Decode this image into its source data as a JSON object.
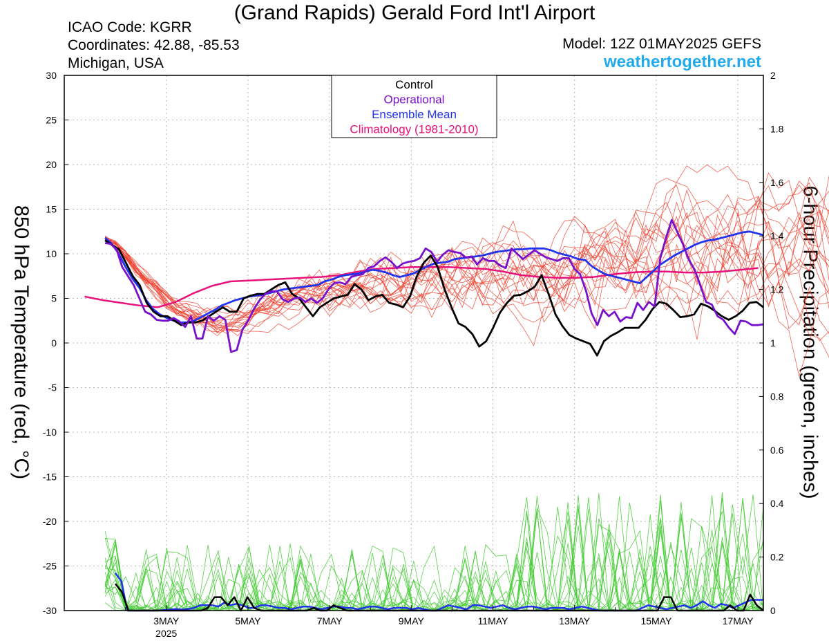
{
  "header": {
    "title": "(Grand Rapids) Gerald Ford Int'l Airport",
    "icao": "ICAO Code: KGRR",
    "coordinates": "Coordinates: 42.88, -85.53",
    "region": "Michigan, USA",
    "model": "Model: 12Z 01MAY2025 GEFS",
    "site": "weathertogether.net"
  },
  "colors": {
    "members_temp": "#ee4433",
    "members_precip": "#44cc33",
    "control": "#000000",
    "operational": "#7711cc",
    "ensemble_mean": "#2233ee",
    "climatology": "#e8127a"
  },
  "chart_data": {
    "type": "line",
    "xlabel": "",
    "ylabel": "850 hPa Temperature (red, °C)",
    "y2label": "6-hour Precipitation (green, inches)",
    "xlim": [
      0.5,
      17.625
    ],
    "ylim": [
      -30,
      30
    ],
    "y2lim": [
      0,
      2
    ],
    "grid": true,
    "legend_position": "top-center",
    "legend": [
      {
        "label": "Control",
        "color": "#000000"
      },
      {
        "label": "Operational",
        "color": "#7711cc"
      },
      {
        "label": "Ensemble Mean",
        "color": "#2233ee"
      },
      {
        "label": "Climatology (1981-2010)",
        "color": "#e8127a"
      }
    ],
    "y_ticks": [
      30,
      25,
      20,
      15,
      10,
      5,
      0,
      -5,
      -10,
      -15,
      -20,
      -25,
      -30
    ],
    "y2_ticks": [
      "2",
      "1.8",
      "1.6",
      "1.4",
      "1.2",
      "1",
      "0.8",
      "0.6",
      "0.4",
      "0.2",
      "0"
    ],
    "x_ticks": [
      {
        "day": 3,
        "label": "3MAY",
        "sublabel": "2025"
      },
      {
        "day": 5,
        "label": "5MAY"
      },
      {
        "day": 7,
        "label": "7MAY"
      },
      {
        "day": 9,
        "label": "9MAY"
      },
      {
        "day": 11,
        "label": "11MAY"
      },
      {
        "day": 13,
        "label": "13MAY"
      },
      {
        "day": 15,
        "label": "15MAY"
      },
      {
        "day": 17,
        "label": "17MAY"
      }
    ],
    "x_start_day": 1.5,
    "x_step_days": 0.25,
    "series": [
      {
        "name": "Control",
        "kind": "temp",
        "color": "#000000",
        "values": [
          11.5,
          11,
          10.5,
          9,
          7.5,
          6.5,
          4.5,
          3.5,
          3,
          3,
          2.5,
          2,
          2.3,
          2.3,
          2.5,
          3,
          3.5,
          4,
          3.5,
          3.5,
          5,
          5.3,
          5.5,
          5.5,
          6,
          6.5,
          6.8,
          5.5,
          5,
          4,
          3,
          4,
          4.5,
          5,
          5.2,
          5.4,
          6.6,
          6,
          4.8,
          5.2,
          5.4,
          4.5,
          4.3,
          4,
          5.2,
          7.5,
          9,
          9.8,
          8.5,
          6,
          4,
          2.2,
          1.8,
          1,
          -0.4,
          0.2,
          1.7,
          3.4,
          4.5,
          5.3,
          5.4,
          5.8,
          6.3,
          7.6,
          5.5,
          3.2,
          1.9,
          0.9,
          0.5,
          0.2,
          -0.1,
          -1.4,
          0.2,
          0.8,
          1.2,
          1.7,
          1.7,
          1.7,
          2.6,
          3.8,
          4.6,
          4.4,
          3.7,
          2.9,
          3,
          3.2,
          4.4,
          4.1,
          3.6,
          3,
          2.6,
          3,
          3.6,
          4.5,
          4.6,
          4
        ]
      },
      {
        "name": "Operational",
        "kind": "temp",
        "color": "#7711cc",
        "values": [
          11.2,
          11.1,
          10.5,
          8.5,
          7.5,
          6.5,
          5,
          3.5,
          3.2,
          2.6,
          2.5,
          2.5,
          2.8,
          2.4,
          1.8,
          3,
          0.5,
          0.5,
          3,
          2.5,
          3,
          2.6,
          -1,
          -0.8,
          1.5,
          2.5,
          3.8,
          4.8,
          5.5,
          5.8,
          5.8,
          4.9,
          4.6,
          5,
          5.1,
          4.6,
          5,
          4.5,
          5,
          6,
          6.7,
          6.8,
          6.6,
          7.4,
          7.6,
          7.7,
          8.4,
          8.6,
          9.2,
          9.6,
          9.1,
          8.4,
          8.9,
          9.1,
          9.2,
          9.5,
          10.6,
          10.2,
          9.1,
          9.9,
          10.4,
          10.2,
          10.1,
          9.6,
          9.7,
          8.8,
          9.5,
          9.2,
          9.2,
          8.7,
          8.4,
          10.6,
          10,
          9.4,
          9.9,
          10.4,
          10,
          9.6,
          9.4,
          9.2,
          9.5,
          9.5,
          8.3,
          7.7,
          5.9,
          3.3,
          2,
          3.7,
          3,
          3.5,
          2.4,
          2.9,
          2.8,
          4.5,
          3.7,
          4.6,
          4.1,
          9.5,
          11.8,
          13.8,
          12.4,
          11,
          9.3,
          8.2,
          6.4,
          4.6,
          4.3,
          3,
          2.6,
          1.7,
          1,
          2.5,
          2.4,
          2,
          2,
          2.1
        ]
      },
      {
        "name": "Ensemble Mean",
        "kind": "temp",
        "color": "#2233ee",
        "values": [
          11.8,
          11.1,
          10,
          8.5,
          7.2,
          6.2,
          4.8,
          3.8,
          3.2,
          2.8,
          2.5,
          2.3,
          2.3,
          2.5,
          2.9,
          3.3,
          3.7,
          4.2,
          4.5,
          4.8,
          5,
          5.2,
          5.3,
          5.4,
          5.6,
          5.8,
          6,
          6.1,
          6.2,
          6.3,
          6.4,
          6.5,
          6.9,
          7.1,
          7.4,
          7.6,
          7.7,
          7.8,
          8,
          8.2,
          8.1,
          7.9,
          7.6,
          7.4,
          7.6,
          7.8,
          8.2,
          8.6,
          8.9,
          9,
          9.1,
          9.4,
          9.5,
          9.6,
          9.7,
          9.8,
          10,
          10.2,
          10.3,
          10.4,
          10.5,
          10.5,
          10.6,
          10.6,
          10.6,
          10.4,
          10.1,
          9.9,
          9.7,
          9.4,
          9.3,
          8.6,
          8.1,
          7.7,
          7.5,
          7.3,
          7.1,
          6.9,
          6.7,
          7.4,
          8.1,
          8.8,
          9.3,
          9.8,
          10.2,
          10.6,
          11,
          11.3,
          11.5,
          11.6,
          11.8,
          12,
          12.2,
          12.4,
          12.5,
          12.3,
          12.1
        ]
      },
      {
        "name": "Climatology (1981-2010)",
        "kind": "temp",
        "color": "#e8127a",
        "values": [
          5.2,
          4.8,
          4.5,
          4.2,
          4,
          4.6,
          5.6,
          6.4,
          6.9,
          7,
          7.1,
          7.2,
          7.3,
          7.4,
          7.6,
          8,
          8.3,
          8.4,
          8.5,
          8.5,
          8.5,
          8.4,
          8.3,
          8,
          7.6,
          7.4,
          7.3,
          7.3,
          7.4,
          7.7,
          7.9,
          8,
          8,
          7.9,
          7.9,
          8,
          8.2,
          8.4
        ]
      },
      {
        "name": "Control",
        "kind": "precip",
        "color": "#000000",
        "values": [
          0.1,
          0.07,
          0,
          0,
          0,
          0,
          0,
          0,
          0,
          0,
          0,
          0,
          0,
          0,
          0.01,
          0.05,
          0.05,
          0.02,
          0.05,
          0,
          0.05,
          0.01,
          0,
          0,
          0,
          0,
          0,
          0,
          0,
          0,
          0.01,
          0,
          0,
          0.02,
          0.01,
          0,
          0,
          0,
          0,
          0,
          0,
          0,
          0,
          0,
          0,
          0,
          0,
          0,
          0,
          0,
          0,
          0,
          0,
          0,
          0,
          0,
          0,
          0,
          0,
          0,
          0,
          0,
          0,
          0,
          0,
          0,
          0,
          0,
          0,
          0,
          0,
          0,
          0,
          0,
          0,
          0,
          0,
          0,
          0,
          0,
          0,
          0,
          0,
          0.05,
          0.05,
          0,
          0,
          0,
          0,
          0,
          0,
          0,
          0,
          0.02,
          0,
          0,
          0.06,
          0.02,
          0
        ]
      },
      {
        "name": "Ensemble Mean",
        "kind": "precip",
        "color": "#2233ee",
        "values": [
          0.14,
          0.11,
          0,
          0,
          0,
          0,
          0,
          0,
          0.002,
          0.004,
          0.006,
          0.004,
          0.006,
          0.01,
          0.02,
          0.02,
          0.02,
          0.015,
          0.03,
          0.02,
          0.025,
          0.02,
          0.01,
          0.01,
          0.02,
          0.02,
          0.015,
          0.01,
          0.01,
          0.005,
          0.01,
          0.015,
          0.015,
          0.01,
          0.005,
          0.01,
          0.015,
          0.015,
          0.01,
          0.01,
          0.005,
          0.01,
          0.015,
          0.015,
          0.01,
          0.005,
          0.01,
          0.01,
          0.01,
          0.005,
          0.01,
          0.005,
          0,
          0,
          0.01,
          0.02,
          0.015,
          0.01,
          0.005,
          0.02,
          0.02,
          0.015,
          0.01,
          0.015,
          0.02,
          0.01,
          0.005,
          0.01,
          0.015,
          0.015,
          0.01,
          0.005,
          0.01,
          0.01,
          0.01,
          0.005,
          0.01,
          0.015,
          0.01,
          0.005,
          0,
          0,
          0,
          0,
          0,
          0,
          0,
          0.01,
          0.02,
          0.015,
          0.01,
          0.005,
          0.01,
          0.015,
          0.02,
          0.01,
          0.02,
          0.035,
          0.02,
          0.01,
          0.025,
          0.02,
          0.01,
          0.02,
          0.03,
          0.04,
          0.04,
          0.04
        ]
      }
    ]
  }
}
